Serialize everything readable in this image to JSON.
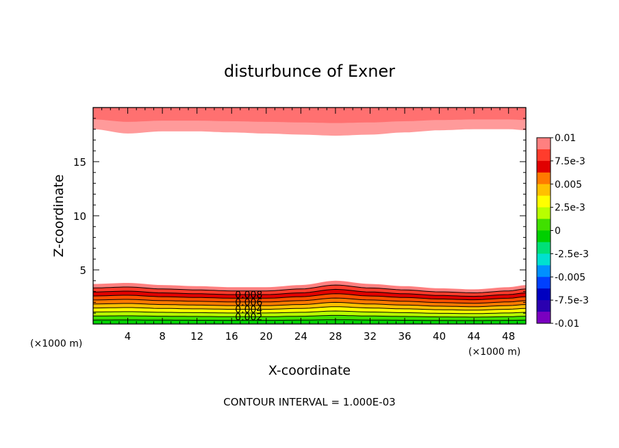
{
  "chart_data": {
    "type": "heatmap",
    "title": "disturbunce of Exner",
    "xlabel": "X-coordinate",
    "ylabel": "Z-coordinate",
    "x_unit_left": "(×1000 m)",
    "x_unit_right": "(×1000 m)",
    "footer": "CONTOUR INTERVAL = 1.000E-03",
    "xlim": [
      0,
      50
    ],
    "ylim": [
      0,
      20
    ],
    "x_ticks": [
      "4",
      "8",
      "12",
      "16",
      "20",
      "24",
      "28",
      "32",
      "36",
      "40",
      "44",
      "48"
    ],
    "y_ticks": [
      "5",
      "10",
      "15"
    ],
    "colorbar": {
      "labels": [
        "0.01",
        "7.5e-3",
        "0.005",
        "2.5e-3",
        "0",
        "-2.5e-3",
        "-0.005",
        "-7.5e-3",
        "-0.01"
      ],
      "colors": [
        "#ff8080",
        "#ff3c2c",
        "#e00000",
        "#ff7a00",
        "#ffc000",
        "#ffff00",
        "#b8ff00",
        "#40e000",
        "#00d000",
        "#00e078",
        "#00e0d0",
        "#0090ff",
        "#0040ff",
        "#0000c0",
        "#2a00b0",
        "#7a00c0"
      ]
    },
    "contour_labels": [
      "0.008",
      "0.006",
      "0.004",
      "0.002"
    ],
    "bottom_layer_x": [
      0,
      4,
      8,
      12,
      16,
      20,
      24,
      28,
      32,
      36,
      40,
      44,
      48,
      50
    ],
    "bottom_layer_top_z": [
      3.7,
      3.8,
      3.6,
      3.5,
      3.4,
      3.4,
      3.6,
      4.0,
      3.7,
      3.5,
      3.3,
      3.2,
      3.4,
      3.6
    ],
    "top_layer_bottom_z": [
      18.0,
      17.6,
      17.8,
      17.8,
      17.7,
      17.6,
      17.5,
      17.4,
      17.5,
      17.7,
      17.9,
      18.0,
      18.0,
      17.9
    ],
    "bottom_band_colors": [
      "#ff8080",
      "#ff3c2c",
      "#e00000",
      "#ff5000",
      "#ff7a00",
      "#ffc000",
      "#ffff00",
      "#b8ff00",
      "#40e000",
      "#00d000"
    ]
  }
}
